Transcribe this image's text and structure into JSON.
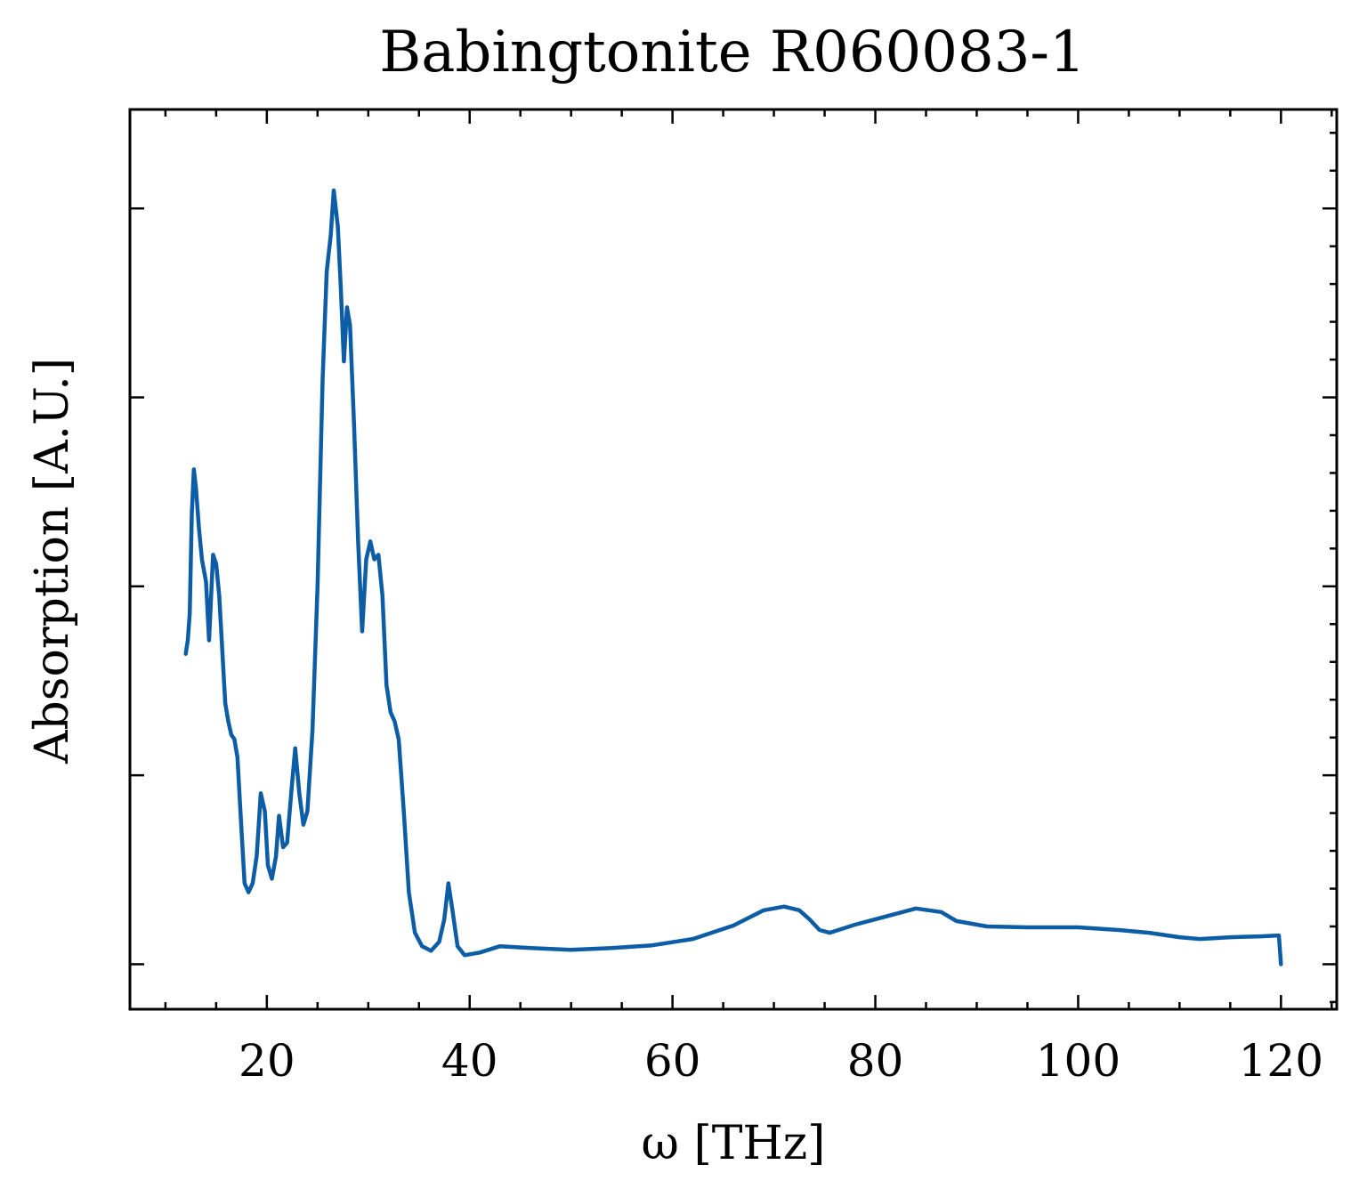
{
  "chart_data": {
    "type": "line",
    "title": "Babingtonite R060083-1",
    "xlabel": "ω [THz]",
    "ylabel": "Absorption [A.U.]",
    "xlim": [
      6.5,
      125.5
    ],
    "ylim": [
      0.0,
      1.0
    ],
    "xticks": [
      20,
      40,
      60,
      80,
      100,
      120
    ],
    "xtick_labels": [
      "20",
      "40",
      "60",
      "80",
      "100",
      "120"
    ],
    "x_minor_step": 5,
    "yticks": [
      0.05,
      0.26,
      0.47,
      0.68,
      0.89
    ],
    "y_minor_step": 0.042,
    "grid": false,
    "line_color": "#0C5DA5",
    "series": [
      {
        "points": [
          [
            12.0,
            0.395
          ],
          [
            12.2,
            0.41
          ],
          [
            12.4,
            0.44
          ],
          [
            12.6,
            0.55
          ],
          [
            12.8,
            0.6
          ],
          [
            13.0,
            0.58
          ],
          [
            13.3,
            0.535
          ],
          [
            13.6,
            0.5
          ],
          [
            14.0,
            0.475
          ],
          [
            14.3,
            0.41
          ],
          [
            14.7,
            0.505
          ],
          [
            15.0,
            0.495
          ],
          [
            15.3,
            0.46
          ],
          [
            15.6,
            0.4
          ],
          [
            15.9,
            0.34
          ],
          [
            16.2,
            0.32
          ],
          [
            16.5,
            0.305
          ],
          [
            16.8,
            0.3
          ],
          [
            17.1,
            0.28
          ],
          [
            17.5,
            0.2
          ],
          [
            17.8,
            0.14
          ],
          [
            18.2,
            0.13
          ],
          [
            18.6,
            0.14
          ],
          [
            19.0,
            0.17
          ],
          [
            19.4,
            0.24
          ],
          [
            19.8,
            0.22
          ],
          [
            20.1,
            0.16
          ],
          [
            20.5,
            0.145
          ],
          [
            20.9,
            0.17
          ],
          [
            21.2,
            0.215
          ],
          [
            21.6,
            0.18
          ],
          [
            22.0,
            0.185
          ],
          [
            22.4,
            0.24
          ],
          [
            22.8,
            0.29
          ],
          [
            23.2,
            0.24
          ],
          [
            23.6,
            0.205
          ],
          [
            24.0,
            0.22
          ],
          [
            24.5,
            0.31
          ],
          [
            25.0,
            0.47
          ],
          [
            25.5,
            0.7
          ],
          [
            25.9,
            0.82
          ],
          [
            26.3,
            0.86
          ],
          [
            26.6,
            0.91
          ],
          [
            27.0,
            0.87
          ],
          [
            27.3,
            0.8
          ],
          [
            27.6,
            0.72
          ],
          [
            27.9,
            0.78
          ],
          [
            28.2,
            0.76
          ],
          [
            28.6,
            0.65
          ],
          [
            29.0,
            0.52
          ],
          [
            29.4,
            0.42
          ],
          [
            29.8,
            0.5
          ],
          [
            30.2,
            0.52
          ],
          [
            30.6,
            0.5
          ],
          [
            31.0,
            0.505
          ],
          [
            31.4,
            0.46
          ],
          [
            31.8,
            0.36
          ],
          [
            32.2,
            0.33
          ],
          [
            32.6,
            0.32
          ],
          [
            33.0,
            0.3
          ],
          [
            33.5,
            0.22
          ],
          [
            34.0,
            0.13
          ],
          [
            34.6,
            0.085
          ],
          [
            35.3,
            0.07
          ],
          [
            36.2,
            0.065
          ],
          [
            37.0,
            0.075
          ],
          [
            37.5,
            0.1
          ],
          [
            37.9,
            0.14
          ],
          [
            38.3,
            0.11
          ],
          [
            38.8,
            0.07
          ],
          [
            39.5,
            0.06
          ],
          [
            41.0,
            0.063
          ],
          [
            43.0,
            0.07
          ],
          [
            46.0,
            0.068
          ],
          [
            50.0,
            0.066
          ],
          [
            54.0,
            0.068
          ],
          [
            58.0,
            0.071
          ],
          [
            62.0,
            0.078
          ],
          [
            66.0,
            0.093
          ],
          [
            69.0,
            0.11
          ],
          [
            71.0,
            0.114
          ],
          [
            72.5,
            0.11
          ],
          [
            73.5,
            0.1
          ],
          [
            74.5,
            0.088
          ],
          [
            75.5,
            0.085
          ],
          [
            78.0,
            0.094
          ],
          [
            81.0,
            0.103
          ],
          [
            84.0,
            0.112
          ],
          [
            86.5,
            0.108
          ],
          [
            88.0,
            0.098
          ],
          [
            91.0,
            0.092
          ],
          [
            95.0,
            0.091
          ],
          [
            100.0,
            0.091
          ],
          [
            104.0,
            0.088
          ],
          [
            107.0,
            0.085
          ],
          [
            110.0,
            0.08
          ],
          [
            112.0,
            0.078
          ],
          [
            115.0,
            0.08
          ],
          [
            118.0,
            0.081
          ],
          [
            119.8,
            0.082
          ],
          [
            120.0,
            0.05
          ]
        ]
      }
    ]
  }
}
